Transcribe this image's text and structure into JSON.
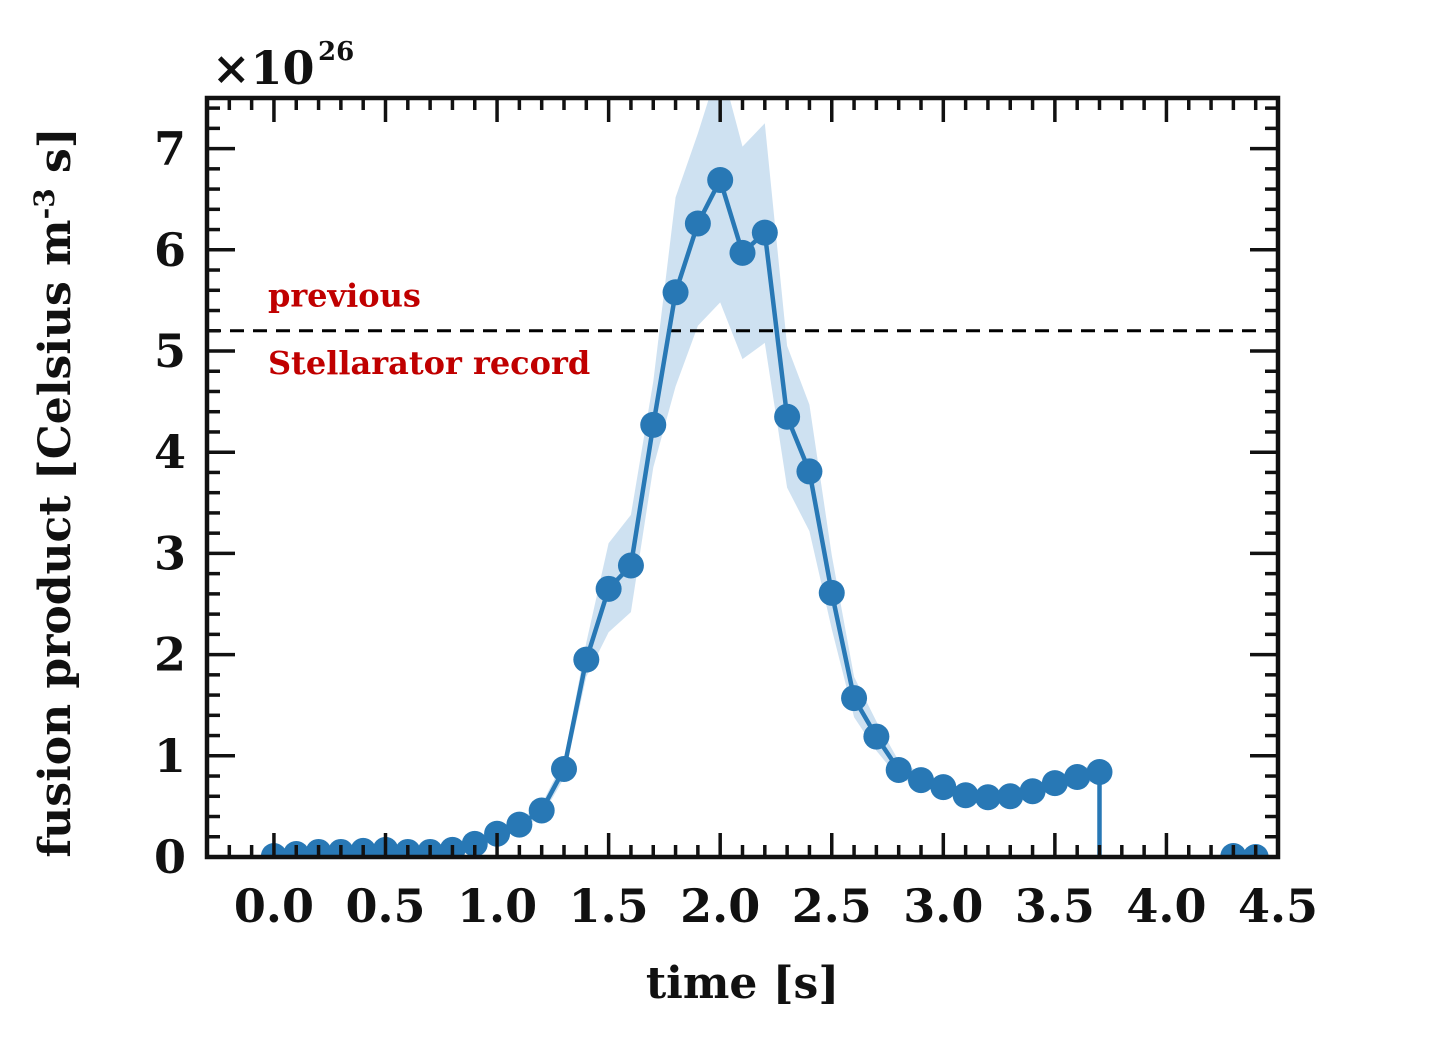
{
  "chart_data": {
    "type": "line",
    "xlabel": "time [s]",
    "ylabel": {
      "main": "fusion product [Celsius m",
      "sup": "-3",
      "tail": " s]"
    },
    "multiplier": {
      "base": "×10",
      "exponent": "26"
    },
    "xlim": [
      -0.3,
      4.5
    ],
    "ylim": [
      0,
      7.5
    ],
    "xticks": [
      "0.0",
      "0.5",
      "1.0",
      "1.5",
      "2.0",
      "2.5",
      "3.0",
      "3.5",
      "4.0",
      "4.5"
    ],
    "yticks": [
      "0",
      "1",
      "2",
      "3",
      "4",
      "5",
      "6",
      "7"
    ],
    "grid": false,
    "series": [
      {
        "color": "#2878b5",
        "band_color": "#c6dcef",
        "x": [
          0.0,
          0.1,
          0.2,
          0.3,
          0.4,
          0.5,
          0.6,
          0.7,
          0.8,
          0.9,
          1.0,
          1.1,
          1.2,
          1.3,
          1.4,
          1.5,
          1.6,
          1.7,
          1.8,
          1.9,
          2.0,
          2.1,
          2.2,
          2.3,
          2.4,
          2.5,
          2.6,
          2.7,
          2.8,
          2.9,
          3.0,
          3.1,
          3.2,
          3.3,
          3.4,
          3.5,
          3.6,
          3.7
        ],
        "y": [
          0.01,
          0.03,
          0.05,
          0.05,
          0.06,
          0.07,
          0.05,
          0.05,
          0.07,
          0.13,
          0.23,
          0.32,
          0.46,
          0.87,
          1.95,
          2.65,
          2.88,
          4.27,
          5.58,
          6.26,
          6.69,
          5.97,
          6.17,
          4.35,
          3.81,
          2.61,
          1.57,
          1.19,
          0.86,
          0.76,
          0.69,
          0.61,
          0.59,
          0.6,
          0.65,
          0.73,
          0.79,
          0.84
        ],
        "y_lower": [
          0.0,
          0.01,
          0.03,
          0.03,
          0.04,
          0.05,
          0.03,
          0.03,
          0.05,
          0.1,
          0.19,
          0.27,
          0.4,
          0.78,
          1.78,
          2.22,
          2.42,
          3.85,
          4.65,
          5.25,
          5.48,
          4.92,
          5.08,
          3.65,
          3.22,
          2.25,
          1.38,
          1.05,
          0.78,
          0.7,
          0.63,
          0.55,
          0.53,
          0.54,
          0.59,
          0.66,
          0.71,
          0.76
        ],
        "y_upper": [
          0.03,
          0.05,
          0.07,
          0.07,
          0.08,
          0.09,
          0.07,
          0.07,
          0.09,
          0.16,
          0.27,
          0.37,
          0.52,
          0.96,
          2.12,
          3.1,
          3.38,
          4.7,
          6.52,
          7.15,
          7.85,
          7.02,
          7.25,
          5.05,
          4.47,
          2.98,
          1.78,
          1.34,
          0.95,
          0.83,
          0.75,
          0.67,
          0.65,
          0.66,
          0.71,
          0.8,
          0.87,
          0.92
        ],
        "tail_x": [
          3.7,
          3.7
        ],
        "tail_y": [
          0.84,
          0
        ],
        "extra_x": [
          4.3,
          4.4
        ],
        "extra_y": [
          0.01,
          0.0
        ]
      }
    ],
    "reference_line": {
      "y": 5.2,
      "color": "#000000"
    },
    "annotations": [
      {
        "text": "previous",
        "x": -0.0,
        "y": 5.55,
        "color": "#c00000"
      },
      {
        "text": "Stellarator record",
        "x": -0.0,
        "y": 4.88,
        "color": "#c00000"
      }
    ]
  }
}
